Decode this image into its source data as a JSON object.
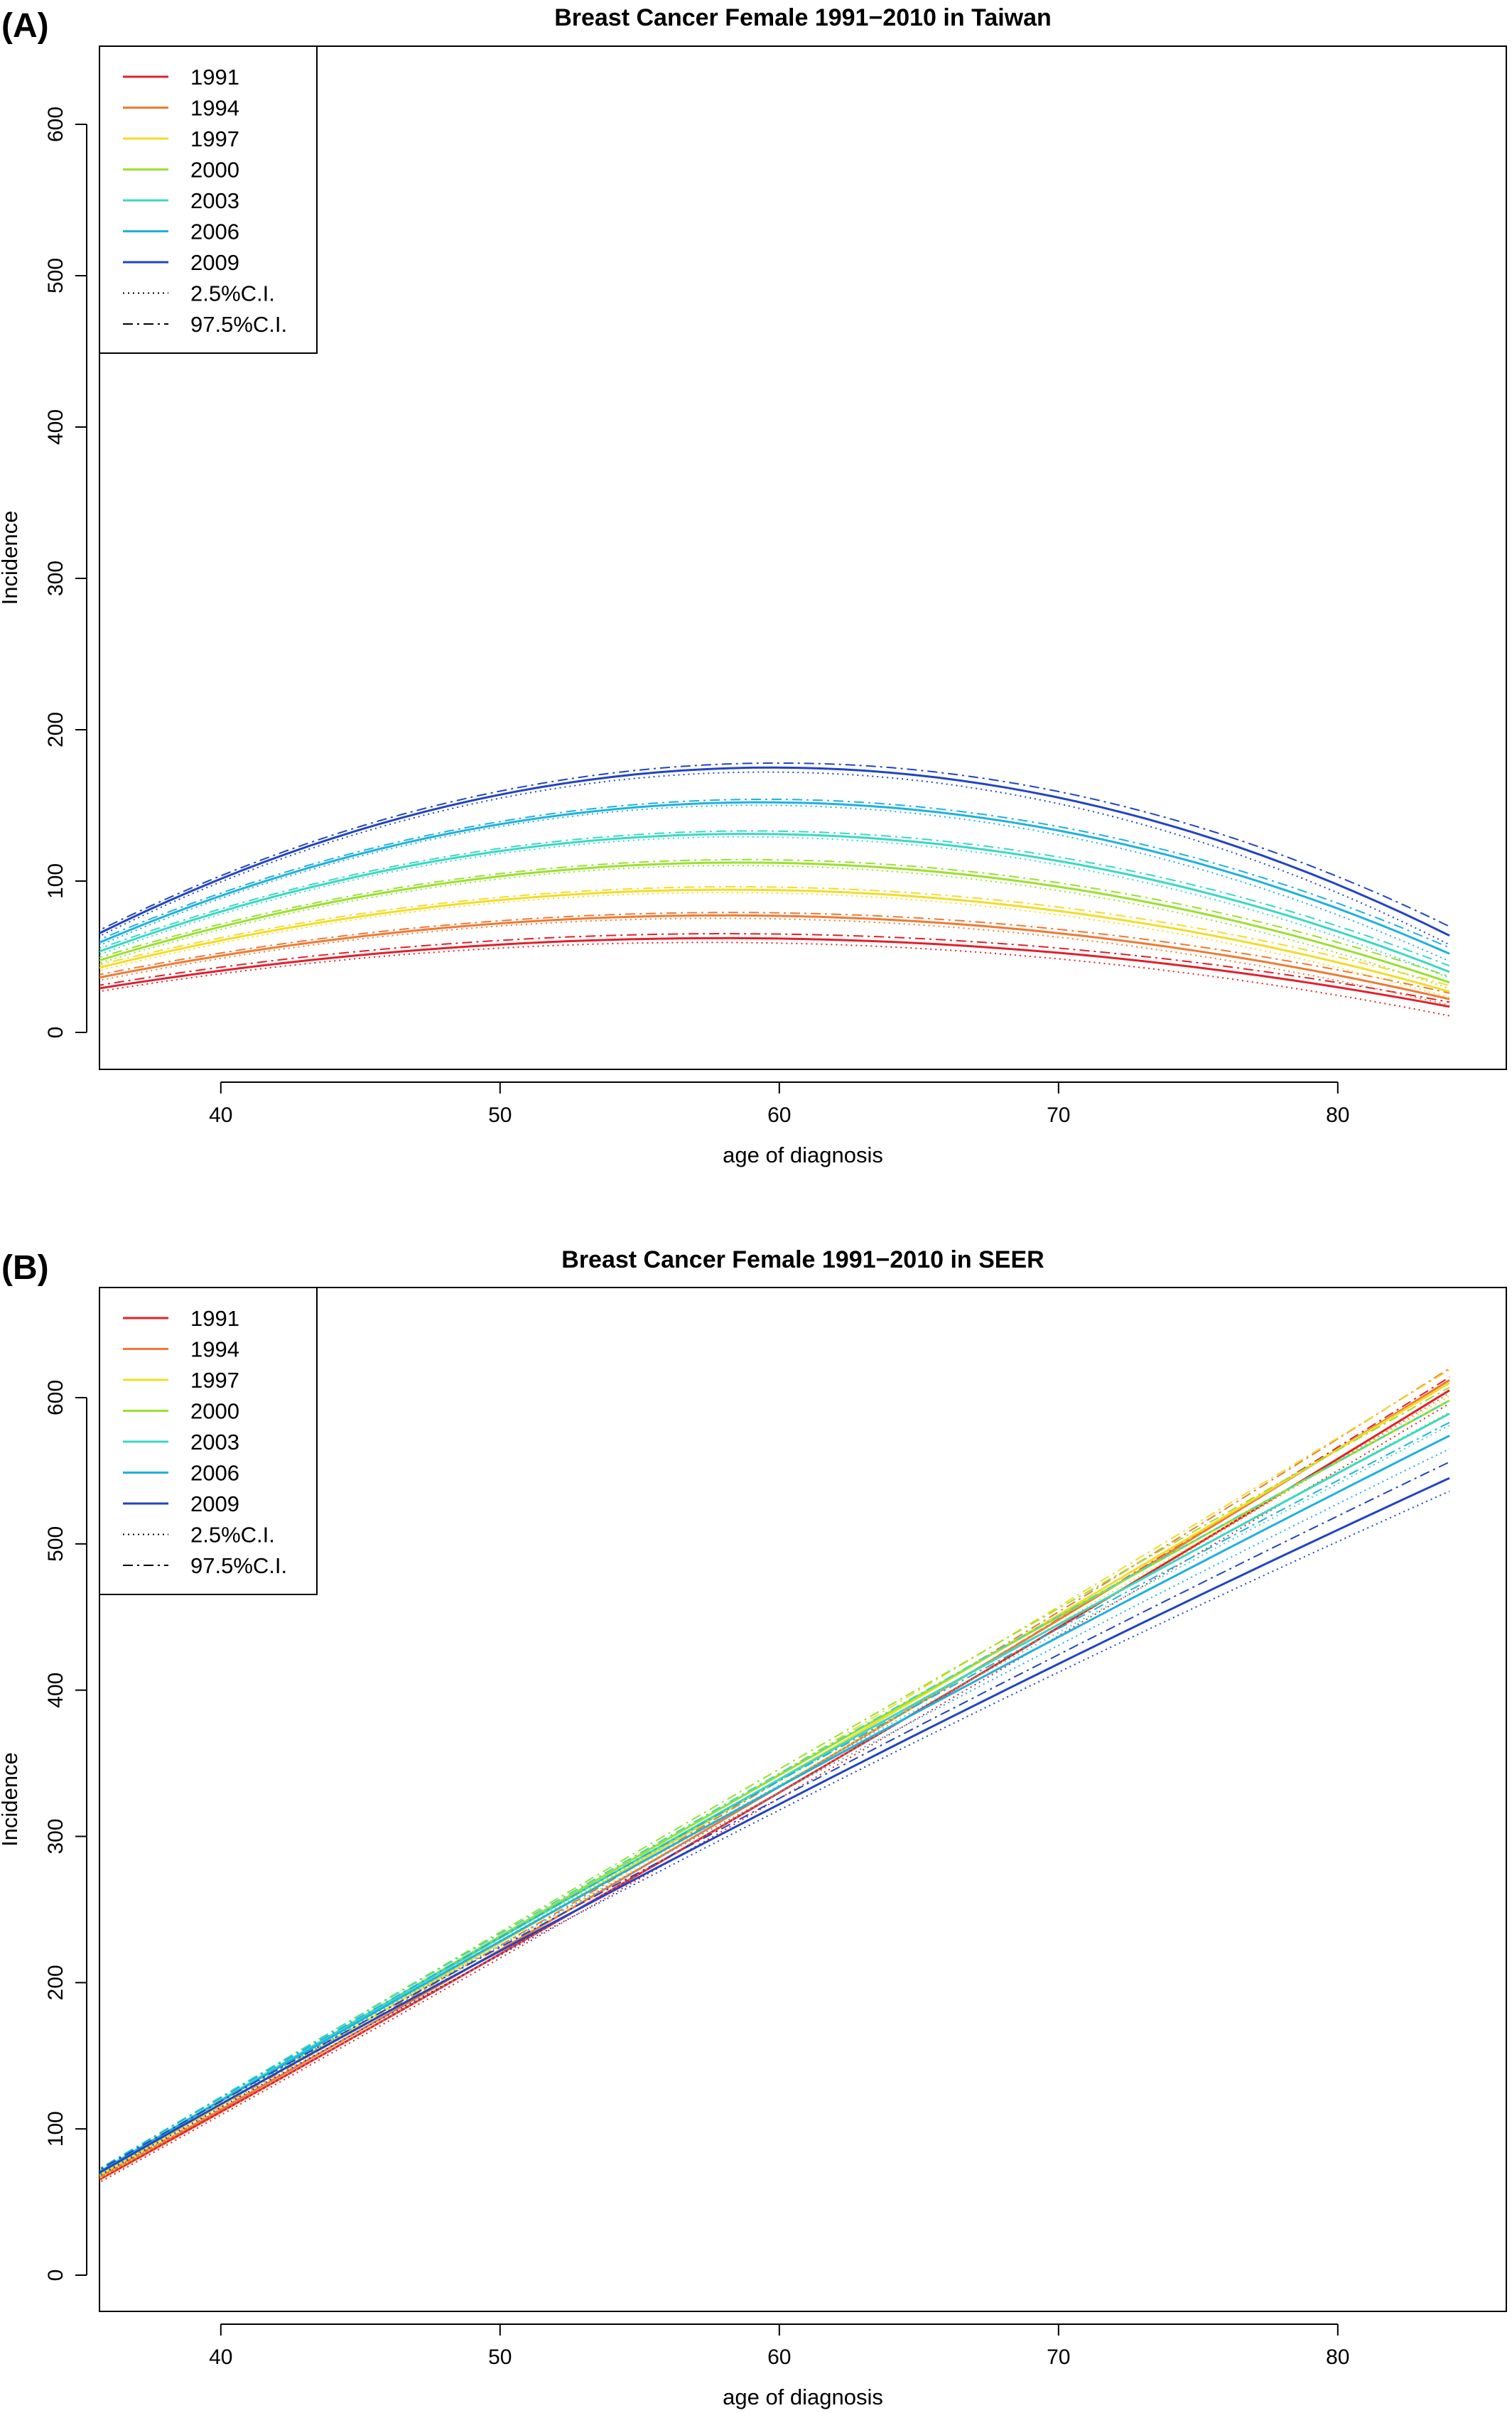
{
  "chart_data": [
    {
      "panel": "(A)",
      "type": "line",
      "title": "Breast Cancer Female 1991−2010 in Taiwan",
      "xlabel": "age of diagnosis",
      "ylabel": "Incidence",
      "xlim": [
        34,
        84
      ],
      "ylim": [
        0,
        650
      ],
      "xticks": [
        40,
        50,
        60,
        70,
        80
      ],
      "yticks": [
        0,
        100,
        200,
        300,
        400,
        500,
        600
      ],
      "grid": false,
      "legend_position": "top-left",
      "legend": {
        "series": [
          "1991",
          "1994",
          "1997",
          "2000",
          "2003",
          "2006",
          "2009"
        ],
        "ci_lower": "2.5%C.I.",
        "ci_upper": "97.5%C.I."
      },
      "x": [
        34,
        60,
        84
      ],
      "series": [
        {
          "name": "1991",
          "color": "#e0212b",
          "values": [
            24,
            62,
            17
          ],
          "ci_lower": [
            22,
            59,
            11
          ],
          "ci_upper": [
            26,
            65,
            20
          ]
        },
        {
          "name": "1994",
          "color": "#ee7a34",
          "values": [
            30,
            77,
            22
          ],
          "ci_lower": [
            28,
            75,
            18
          ],
          "ci_upper": [
            32,
            79,
            26
          ]
        },
        {
          "name": "1997",
          "color": "#f3dc29",
          "values": [
            35,
            94,
            27
          ],
          "ci_lower": [
            33,
            92,
            23
          ],
          "ci_upper": [
            37,
            96,
            31
          ]
        },
        {
          "name": "2000",
          "color": "#9ae030",
          "values": [
            38,
            112,
            33
          ],
          "ci_lower": [
            36,
            110,
            29
          ],
          "ci_upper": [
            40,
            114,
            37
          ]
        },
        {
          "name": "2003",
          "color": "#3ad8c4",
          "values": [
            42,
            131,
            40
          ],
          "ci_lower": [
            40,
            129,
            36
          ],
          "ci_upper": [
            44,
            133,
            44
          ]
        },
        {
          "name": "2006",
          "color": "#1fb1de",
          "values": [
            46,
            152,
            52
          ],
          "ci_lower": [
            44,
            150,
            47
          ],
          "ci_upper": [
            48,
            154,
            56
          ]
        },
        {
          "name": "2009",
          "color": "#2144c4",
          "values": [
            50,
            175,
            64
          ],
          "ci_lower": [
            48,
            172,
            58
          ],
          "ci_upper": [
            52,
            178,
            70
          ]
        }
      ]
    },
    {
      "panel": "(B)",
      "type": "line",
      "title": "Breast Cancer Female 1991−2010 in SEER",
      "xlabel": "age of diagnosis",
      "ylabel": "Incidence",
      "xlim": [
        34,
        84
      ],
      "ylim": [
        0,
        650
      ],
      "xticks": [
        40,
        50,
        60,
        70,
        80
      ],
      "yticks": [
        0,
        100,
        200,
        300,
        400,
        500,
        600
      ],
      "grid": false,
      "legend_position": "top-left",
      "legend": {
        "series": [
          "1991",
          "1994",
          "1997",
          "2000",
          "2003",
          "2006",
          "2009"
        ],
        "ci_lower": "2.5%C.I.",
        "ci_upper": "97.5%C.I."
      },
      "x": [
        34,
        60,
        84
      ],
      "series": [
        {
          "name": "1991",
          "color": "#e0212b",
          "values": [
            48,
            330,
            605
          ],
          "ci_lower": [
            46,
            326,
            596
          ],
          "ci_upper": [
            50,
            334,
            614
          ]
        },
        {
          "name": "1994",
          "color": "#ee7a34",
          "values": [
            49,
            334,
            612
          ],
          "ci_lower": [
            47,
            330,
            603
          ],
          "ci_upper": [
            51,
            338,
            620
          ]
        },
        {
          "name": "1997",
          "color": "#f3dc29",
          "values": [
            50,
            339,
            610
          ],
          "ci_lower": [
            48,
            335,
            601
          ],
          "ci_upper": [
            52,
            343,
            619
          ]
        },
        {
          "name": "2000",
          "color": "#9ae030",
          "values": [
            51,
            342,
            598
          ],
          "ci_lower": [
            49,
            338,
            590
          ],
          "ci_upper": [
            53,
            346,
            607
          ]
        },
        {
          "name": "2003",
          "color": "#3ad8c4",
          "values": [
            52,
            339,
            589
          ],
          "ci_lower": [
            50,
            335,
            581
          ],
          "ci_upper": [
            54,
            343,
            598
          ]
        },
        {
          "name": "2006",
          "color": "#1fb1de",
          "values": [
            52,
            334,
            574
          ],
          "ci_lower": [
            50,
            330,
            565
          ],
          "ci_upper": [
            54,
            338,
            583
          ]
        },
        {
          "name": "2009",
          "color": "#2144c4",
          "values": [
            52,
            322,
            545
          ],
          "ci_lower": [
            50,
            318,
            536
          ],
          "ci_upper": [
            54,
            326,
            556
          ]
        }
      ]
    }
  ]
}
